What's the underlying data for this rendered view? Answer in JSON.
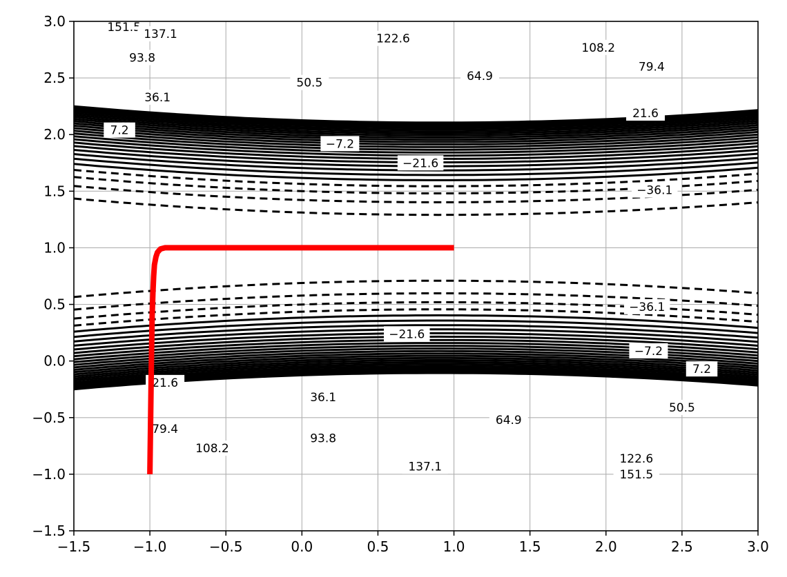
{
  "chart_data": {
    "type": "contour",
    "title": "",
    "xlabel": "",
    "ylabel": "",
    "xlim": [
      -1.5,
      3.0
    ],
    "ylim": [
      -1.5,
      3.0
    ],
    "x_ticks": [
      -1.5,
      -1.0,
      -0.5,
      0.0,
      0.5,
      1.0,
      1.5,
      2.0,
      2.5,
      3.0
    ],
    "y_ticks": [
      -1.5,
      -1.0,
      -0.5,
      0.0,
      0.5,
      1.0,
      1.5,
      2.0,
      2.5,
      3.0
    ],
    "x_tick_labels": [
      "−1.5",
      "−1.0",
      "−0.5",
      "0.0",
      "0.5",
      "1.0",
      "1.5",
      "2.0",
      "2.5",
      "3.0"
    ],
    "y_tick_labels": [
      "−1.5",
      "−1.0",
      "−0.5",
      "0.0",
      "0.5",
      "1.0",
      "1.5",
      "2.0",
      "2.5",
      "3.0"
    ],
    "grid": true,
    "contour_levels": [
      -36.1,
      -28.9,
      -21.6,
      -14.4,
      -7.2,
      0,
      7.2,
      14.4,
      21.6,
      28.9,
      36.1,
      43.3,
      50.5,
      57.7,
      64.9,
      72.2,
      79.4,
      86.6,
      93.8,
      101.0,
      108.2,
      115.4,
      122.6,
      129.9,
      137.1,
      144.3,
      151.5
    ],
    "line_color": "#000000",
    "negative_line_style": "dashed",
    "contour_labels": [
      {
        "text": "151.5",
        "x": -1.17,
        "y": 2.95
      },
      {
        "text": "137.1",
        "x": -0.93,
        "y": 2.89
      },
      {
        "text": "122.6",
        "x": 0.6,
        "y": 2.85
      },
      {
        "text": "108.2",
        "x": 1.95,
        "y": 2.77
      },
      {
        "text": "93.8",
        "x": -1.05,
        "y": 2.68
      },
      {
        "text": "79.4",
        "x": 2.3,
        "y": 2.6
      },
      {
        "text": "64.9",
        "x": 1.17,
        "y": 2.52
      },
      {
        "text": "50.5",
        "x": 0.05,
        "y": 2.46
      },
      {
        "text": "36.1",
        "x": -0.95,
        "y": 2.33
      },
      {
        "text": "21.6",
        "x": 2.26,
        "y": 2.19
      },
      {
        "text": "7.2",
        "x": -1.2,
        "y": 2.04
      },
      {
        "text": "−7.2",
        "x": 0.25,
        "y": 1.92
      },
      {
        "text": "−21.6",
        "x": 0.78,
        "y": 1.75
      },
      {
        "text": "−36.1",
        "x": 2.32,
        "y": 1.51
      },
      {
        "text": "−36.1",
        "x": 2.27,
        "y": 0.48
      },
      {
        "text": "−21.6",
        "x": 0.69,
        "y": 0.24
      },
      {
        "text": "−7.2",
        "x": 2.28,
        "y": 0.09
      },
      {
        "text": "7.2",
        "x": 2.63,
        "y": -0.07
      },
      {
        "text": "21.6",
        "x": -0.9,
        "y": -0.19
      },
      {
        "text": "36.1",
        "x": 0.14,
        "y": -0.32
      },
      {
        "text": "50.5",
        "x": 2.5,
        "y": -0.41
      },
      {
        "text": "64.9",
        "x": 1.36,
        "y": -0.52
      },
      {
        "text": "79.4",
        "x": -0.9,
        "y": -0.6
      },
      {
        "text": "93.8",
        "x": 0.14,
        "y": -0.68
      },
      {
        "text": "108.2",
        "x": -0.59,
        "y": -0.77
      },
      {
        "text": "122.6",
        "x": 2.2,
        "y": -0.86
      },
      {
        "text": "137.1",
        "x": 0.81,
        "y": -0.93
      },
      {
        "text": "151.5",
        "x": 2.2,
        "y": -1.0
      }
    ],
    "series": [
      {
        "type": "line",
        "color": "#ff0000",
        "x": [
          -1.0,
          -0.995,
          -0.99,
          -0.985,
          -0.98,
          -0.975,
          -0.97,
          -0.96,
          -0.95,
          -0.93,
          -0.9,
          -0.85,
          -0.7,
          -0.5,
          0.0,
          0.5,
          1.0
        ],
        "y": [
          -1.0,
          -0.5,
          0.0,
          0.4,
          0.6,
          0.75,
          0.85,
          0.92,
          0.96,
          0.99,
          1.0,
          1.0,
          1.0,
          1.0,
          1.0,
          1.0,
          1.0
        ]
      }
    ]
  }
}
